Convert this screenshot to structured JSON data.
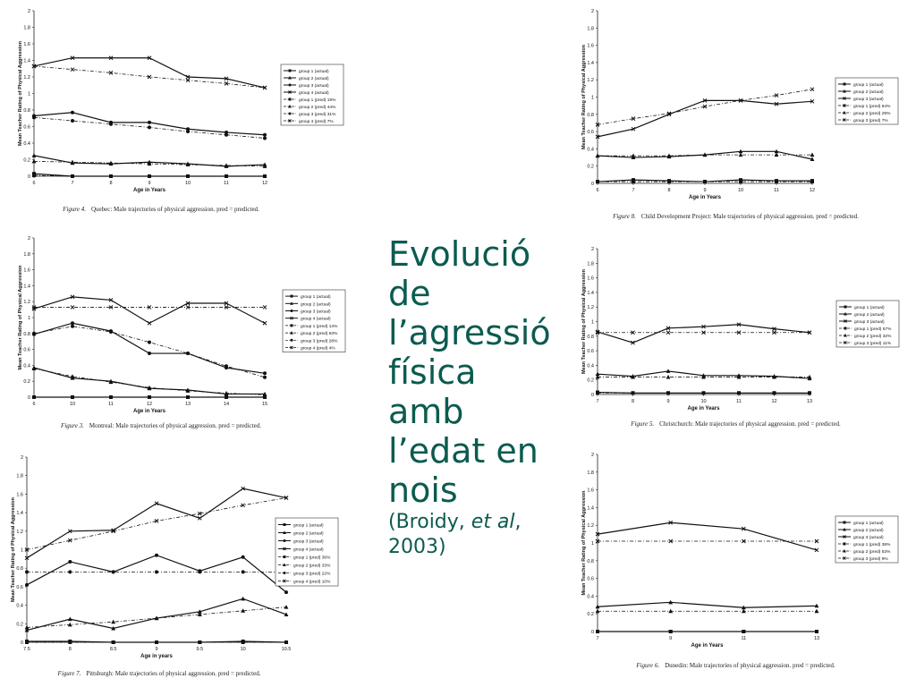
{
  "title": {
    "lines": [
      "Evolució",
      "de",
      "l’agressió",
      "física amb",
      "l’edat en",
      "nois"
    ],
    "citation_prefix": "(Broidy, ",
    "citation_italic": "et al",
    "citation_suffix": ",",
    "citation_line2": "2003)",
    "color": "#0b5b4f"
  },
  "chart_data": [
    {
      "type": "line",
      "figure_label": "Figure 4.",
      "caption": "Quebec: Male trajectories of physical aggression. pred = predicted.",
      "xlabel": "Age in Years",
      "ylabel": "Mean Teacher Rating of Physical Aggression",
      "x": [
        6,
        7,
        8,
        9,
        10,
        11,
        12
      ],
      "x_ticks": [
        "6",
        "7",
        "8",
        "9",
        "10",
        "11",
        "12"
      ],
      "ylim": [
        0,
        2
      ],
      "y_ticks": [
        "0",
        "0.2",
        "0.4",
        "0.6",
        "0.8",
        "1",
        "1.2",
        "1.4",
        "1.6",
        "1.8",
        "2"
      ],
      "series": [
        {
          "name": "group 1 (actual)",
          "style": "solid",
          "marker": "square",
          "values": [
            0.03,
            0.0,
            0.0,
            0.0,
            0.0,
            0.0,
            0.0
          ]
        },
        {
          "name": "group 2 (actual)",
          "style": "solid",
          "marker": "triangle",
          "values": [
            0.25,
            0.16,
            0.15,
            0.17,
            0.15,
            0.12,
            0.14
          ]
        },
        {
          "name": "group 3 (actual)",
          "style": "solid",
          "marker": "circle",
          "values": [
            0.73,
            0.77,
            0.65,
            0.65,
            0.57,
            0.53,
            0.5
          ]
        },
        {
          "name": "group 4 (actual)",
          "style": "solid",
          "marker": "x",
          "values": [
            1.33,
            1.43,
            1.43,
            1.43,
            1.2,
            1.18,
            1.07
          ]
        },
        {
          "name": "group 1 (pred) 19%",
          "style": "dashed",
          "marker": "square",
          "values": [
            0.01,
            0.0,
            0.0,
            0.0,
            0.0,
            0.0,
            0.0
          ]
        },
        {
          "name": "group 2 (pred) 44%",
          "style": "dashed",
          "marker": "triangle",
          "values": [
            0.18,
            0.17,
            0.16,
            0.15,
            0.14,
            0.13,
            0.12
          ]
        },
        {
          "name": "group 3 (pred) 31%",
          "style": "dashed",
          "marker": "circle",
          "values": [
            0.71,
            0.67,
            0.63,
            0.59,
            0.54,
            0.5,
            0.46
          ]
        },
        {
          "name": "group 4 (pred) 7%",
          "style": "dashed",
          "marker": "x",
          "values": [
            1.33,
            1.29,
            1.25,
            1.2,
            1.16,
            1.12,
            1.07
          ]
        }
      ]
    },
    {
      "type": "line",
      "figure_label": "Figure 8.",
      "caption": "Child Development Project: Male trajectories of physical aggression. pred = predicted.",
      "xlabel": "Age in Years",
      "ylabel": "Mean Teacher Rating of Physical Aggression",
      "x": [
        6,
        7,
        8,
        9,
        10,
        11,
        12
      ],
      "x_ticks": [
        "6",
        "7",
        "8",
        "9",
        "10",
        "11",
        "12"
      ],
      "ylim": [
        0,
        2
      ],
      "y_ticks": [
        "0",
        "0.2",
        "0.4",
        "0.6",
        "0.8",
        "1",
        "1.2",
        "1.4",
        "1.6",
        "1.8",
        "2"
      ],
      "series": [
        {
          "name": "group 1 (actual)",
          "style": "solid",
          "marker": "square",
          "values": [
            0.02,
            0.04,
            0.03,
            0.02,
            0.04,
            0.03,
            0.03
          ]
        },
        {
          "name": "group 2 (actual)",
          "style": "solid",
          "marker": "triangle",
          "values": [
            0.32,
            0.3,
            0.31,
            0.33,
            0.37,
            0.37,
            0.28
          ]
        },
        {
          "name": "group 3 (actual)",
          "style": "solid",
          "marker": "x",
          "values": [
            0.54,
            0.63,
            0.8,
            0.96,
            0.96,
            0.92,
            0.95
          ]
        },
        {
          "name": "group 1 (pred) 64%",
          "style": "dashed",
          "marker": "square",
          "values": [
            0.02,
            0.02,
            0.02,
            0.02,
            0.02,
            0.02,
            0.02
          ]
        },
        {
          "name": "group 2 (pred) 29%",
          "style": "dashed",
          "marker": "triangle",
          "values": [
            0.32,
            0.32,
            0.32,
            0.33,
            0.33,
            0.33,
            0.33
          ]
        },
        {
          "name": "group 3 (pred) 7%",
          "style": "dashed",
          "marker": "x",
          "values": [
            0.68,
            0.75,
            0.81,
            0.89,
            0.96,
            1.02,
            1.09
          ]
        }
      ]
    },
    {
      "type": "line",
      "figure_label": "Figure 3.",
      "caption": "Montreal: Male trajectories of physical aggression. pred = predicted.",
      "xlabel": "Age in Years",
      "ylabel": "Mean Teacher Rating of Physical Aggression",
      "x": [
        6,
        10,
        11,
        12,
        13,
        14,
        15
      ],
      "x_ticks": [
        "6",
        "10",
        "11",
        "12",
        "13",
        "14",
        "15"
      ],
      "ylim": [
        0,
        2
      ],
      "y_ticks": [
        "0",
        "0.2",
        "0.4",
        "0.6",
        "0.8",
        "1",
        "1.2",
        "1.4",
        "1.6",
        "1.8",
        "2"
      ],
      "series": [
        {
          "name": "group 1 (actual)",
          "style": "solid",
          "marker": "square",
          "values": [
            0.0,
            0.0,
            0.0,
            0.0,
            0.0,
            0.0,
            0.0
          ]
        },
        {
          "name": "group 2 (actual)",
          "style": "solid",
          "marker": "triangle",
          "values": [
            0.37,
            0.24,
            0.2,
            0.11,
            0.09,
            0.04,
            0.04
          ]
        },
        {
          "name": "group 3 (actual)",
          "style": "solid",
          "marker": "circle",
          "values": [
            0.79,
            0.93,
            0.83,
            0.55,
            0.55,
            0.37,
            0.3
          ]
        },
        {
          "name": "group 4 (actual)",
          "style": "solid",
          "marker": "x",
          "values": [
            1.11,
            1.26,
            1.22,
            0.93,
            1.18,
            1.18,
            0.93
          ]
        },
        {
          "name": "group 1 (pred) 14%",
          "style": "dashed",
          "marker": "square",
          "values": [
            0.0,
            0.0,
            0.0,
            0.0,
            0.0,
            0.0,
            0.0
          ]
        },
        {
          "name": "group 2 (pred) 63%",
          "style": "dashed",
          "marker": "triangle",
          "values": [
            0.36,
            0.26,
            0.19,
            0.12,
            0.08,
            0.05,
            0.03
          ]
        },
        {
          "name": "group 3 (pred) 28%",
          "style": "dashed",
          "marker": "circle",
          "values": [
            0.8,
            0.89,
            0.82,
            0.69,
            0.55,
            0.39,
            0.25
          ]
        },
        {
          "name": "group 4 (pred) 4%",
          "style": "dashed",
          "marker": "x",
          "values": [
            1.13,
            1.13,
            1.13,
            1.13,
            1.13,
            1.13,
            1.13
          ]
        }
      ]
    },
    {
      "type": "line",
      "figure_label": "Figure 5.",
      "caption": "Christchurch: Male trajectories of physical aggression. pred = predicted.",
      "xlabel": "Age in Years",
      "ylabel": "Mean Teacher Rating of Physical Aggression",
      "x": [
        7,
        8,
        9,
        10,
        11,
        12,
        13
      ],
      "x_ticks": [
        "7",
        "8",
        "9",
        "10",
        "11",
        "12",
        "13"
      ],
      "ylim": [
        0,
        2
      ],
      "y_ticks": [
        "0",
        "0.2",
        "0.4",
        "0.6",
        "0.8",
        "1",
        "1.2",
        "1.4",
        "1.6",
        "1.8",
        "2"
      ],
      "series": [
        {
          "name": "group 1 (actual)",
          "style": "solid",
          "marker": "square",
          "values": [
            0.03,
            0.02,
            0.02,
            0.02,
            0.02,
            0.02,
            0.02
          ]
        },
        {
          "name": "group 2 (actual)",
          "style": "solid",
          "marker": "triangle",
          "values": [
            0.28,
            0.25,
            0.32,
            0.26,
            0.26,
            0.25,
            0.22
          ]
        },
        {
          "name": "group 3 (actual)",
          "style": "solid",
          "marker": "x",
          "values": [
            0.86,
            0.71,
            0.91,
            0.93,
            0.96,
            0.9,
            0.85
          ]
        },
        {
          "name": "group 1 (pred) 57%",
          "style": "dashed",
          "marker": "square",
          "values": [
            0.02,
            0.02,
            0.02,
            0.02,
            0.02,
            0.02,
            0.02
          ]
        },
        {
          "name": "group 2 (pred) 32%",
          "style": "dashed",
          "marker": "triangle",
          "values": [
            0.24,
            0.24,
            0.24,
            0.24,
            0.24,
            0.24,
            0.24
          ]
        },
        {
          "name": "group 3 (pred) 11%",
          "style": "dashed",
          "marker": "x",
          "values": [
            0.85,
            0.85,
            0.85,
            0.85,
            0.85,
            0.85,
            0.85
          ]
        }
      ]
    },
    {
      "type": "line",
      "figure_label": "Figure 7.",
      "caption": "Pittsburgh: Male trajectories of physical aggression. pred = predicted.",
      "xlabel": "Age in years",
      "ylabel": "Mean Teacher Rating of Physical Aggression",
      "x": [
        7.5,
        8,
        8.5,
        9,
        9.5,
        10,
        10.5
      ],
      "x_ticks": [
        "7.5",
        "8",
        "8.5",
        "9",
        "9.5",
        "10",
        "10.5"
      ],
      "ylim": [
        0,
        2
      ],
      "y_ticks": [
        "0",
        "0.2",
        "0.4",
        "0.6",
        "0.8",
        "1",
        "1.2",
        "1.4",
        "1.6",
        "1.8",
        "2"
      ],
      "series": [
        {
          "name": "group 1 (actual)",
          "style": "solid",
          "marker": "square",
          "values": [
            0.01,
            0.01,
            0.0,
            0.0,
            0.0,
            0.01,
            0.0
          ]
        },
        {
          "name": "group 2 (actual)",
          "style": "solid",
          "marker": "triangle",
          "values": [
            0.13,
            0.25,
            0.15,
            0.26,
            0.33,
            0.47,
            0.3
          ]
        },
        {
          "name": "group 3 (actual)",
          "style": "solid",
          "marker": "circle",
          "values": [
            0.62,
            0.87,
            0.76,
            0.94,
            0.77,
            0.92,
            0.54
          ]
        },
        {
          "name": "group 4 (actual)",
          "style": "solid",
          "marker": "x",
          "values": [
            0.91,
            1.2,
            1.21,
            1.5,
            1.34,
            1.66,
            1.56
          ]
        },
        {
          "name": "group 1 (pred) 36%",
          "style": "dashed",
          "marker": "square",
          "values": [
            0.0,
            0.0,
            0.0,
            0.0,
            0.0,
            0.0,
            0.0
          ]
        },
        {
          "name": "group 2 (pred) 33%",
          "style": "dashed",
          "marker": "triangle",
          "values": [
            0.16,
            0.19,
            0.22,
            0.26,
            0.3,
            0.34,
            0.38
          ]
        },
        {
          "name": "group 3 (pred) 22%",
          "style": "dashed",
          "marker": "circle",
          "values": [
            0.76,
            0.76,
            0.76,
            0.76,
            0.76,
            0.76,
            0.76
          ]
        },
        {
          "name": "group 4 (pred) 10%",
          "style": "dashed",
          "marker": "x",
          "values": [
            1.0,
            1.1,
            1.2,
            1.31,
            1.39,
            1.48,
            1.56
          ]
        }
      ]
    },
    {
      "type": "line",
      "figure_label": "Figure 6.",
      "caption": "Dunedin: Male trajectories of physical aggression. pred = predicted.",
      "xlabel": "Age in Years",
      "ylabel": "Mean Teacher Rating of Physical Aggression",
      "x": [
        7,
        9,
        11,
        13
      ],
      "x_ticks": [
        "7",
        "9",
        "11",
        "13"
      ],
      "ylim": [
        0,
        2
      ],
      "y_ticks": [
        "0",
        "0.2",
        "0.4",
        "0.6",
        "0.8",
        "1",
        "1.2",
        "1.4",
        "1.6",
        "1.8",
        "2"
      ],
      "series": [
        {
          "name": "group 1 (actual)",
          "style": "solid",
          "marker": "square",
          "values": [
            0.0,
            0.0,
            0.0,
            0.0
          ]
        },
        {
          "name": "group 2 (actual)",
          "style": "solid",
          "marker": "triangle",
          "values": [
            0.28,
            0.33,
            0.27,
            0.29
          ]
        },
        {
          "name": "group 3 (actual)",
          "style": "solid",
          "marker": "x",
          "values": [
            1.1,
            1.23,
            1.16,
            0.92
          ]
        },
        {
          "name": "group 1 (pred) 38%",
          "style": "dashed",
          "marker": "square",
          "values": [
            0.0,
            0.0,
            0.0,
            0.0
          ]
        },
        {
          "name": "group 2 (pred) 53%",
          "style": "dashed",
          "marker": "triangle",
          "values": [
            0.23,
            0.23,
            0.23,
            0.23
          ]
        },
        {
          "name": "group 3 (pred) 9%",
          "style": "dashed",
          "marker": "x",
          "values": [
            1.02,
            1.02,
            1.02,
            1.02
          ]
        }
      ]
    }
  ]
}
